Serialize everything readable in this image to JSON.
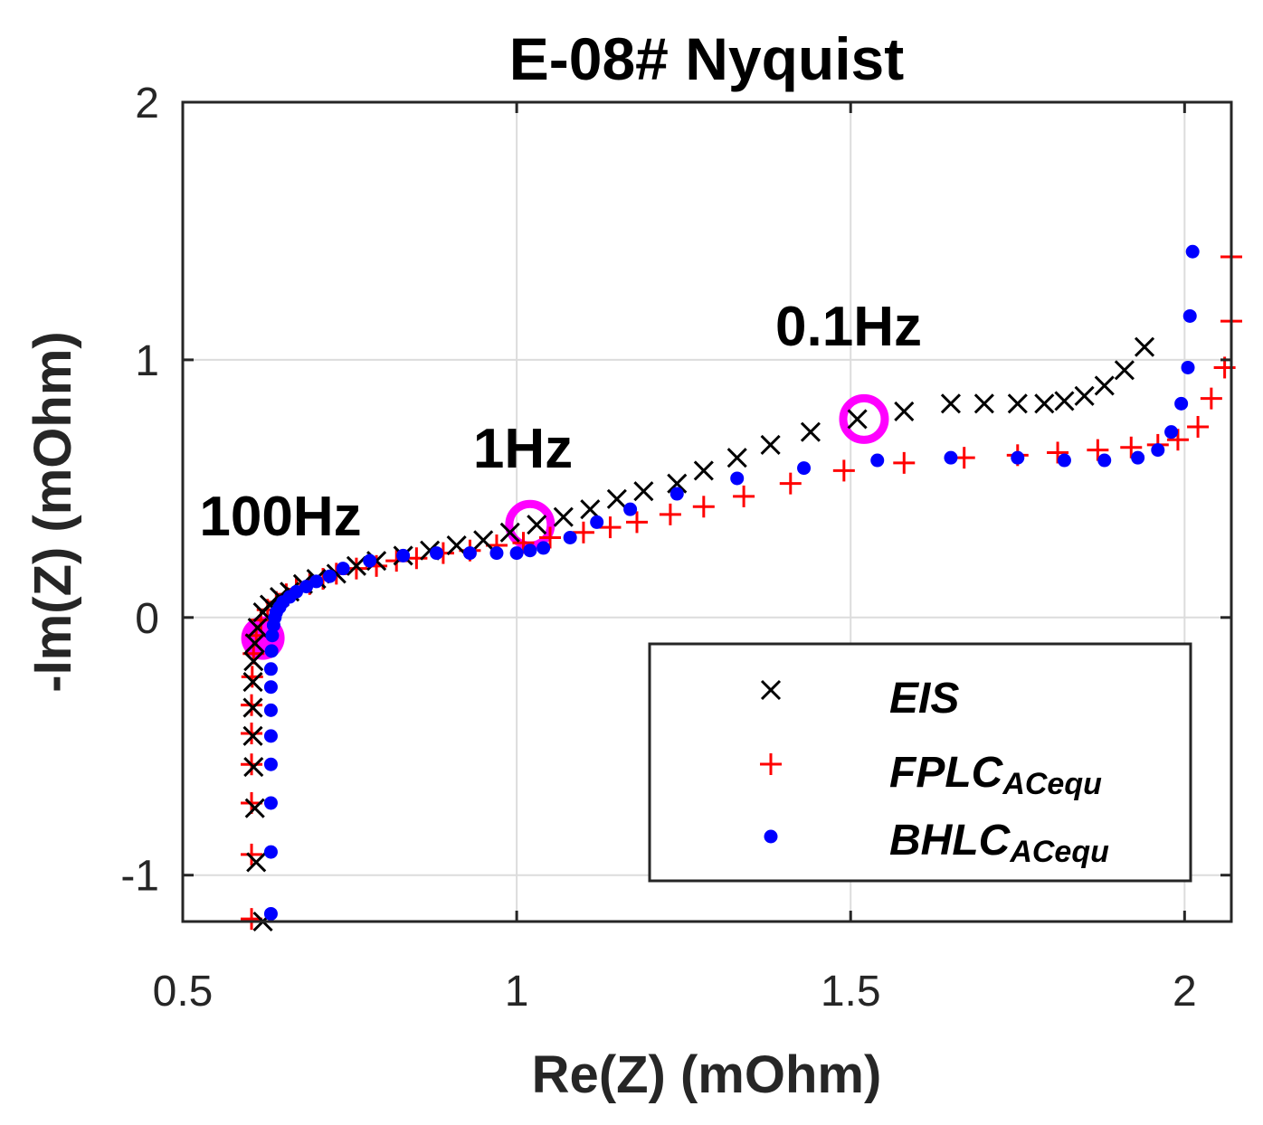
{
  "chart_data": {
    "type": "scatter",
    "title": "E-08# Nyquist",
    "xlabel": "Re(Z) (mOhm)",
    "ylabel": "-Im(Z) (mOhm)",
    "xlim": [
      0.5,
      2.07
    ],
    "ylim": [
      -1.18,
      2
    ],
    "xticks": [
      0.5,
      1,
      1.5,
      2
    ],
    "xtick_labels": [
      "0.5",
      "1",
      "1.5",
      "2"
    ],
    "yticks": [
      -1,
      0,
      1,
      2
    ],
    "ytick_labels": [
      "-1",
      "0",
      "1",
      "2"
    ],
    "grid": true,
    "legend_position": "bottom-right",
    "series": [
      {
        "name": "EIS",
        "label_main": "EIS",
        "label_sub": "",
        "marker": "x",
        "color": "#000000",
        "x": [
          0.62,
          0.61,
          0.608,
          0.606,
          0.605,
          0.605,
          0.605,
          0.606,
          0.608,
          0.612,
          0.62,
          0.63,
          0.645,
          0.66,
          0.68,
          0.7,
          0.73,
          0.76,
          0.79,
          0.83,
          0.87,
          0.91,
          0.95,
          0.99,
          1.03,
          1.07,
          1.11,
          1.15,
          1.19,
          1.24,
          1.28,
          1.33,
          1.38,
          1.44,
          1.51,
          1.58,
          1.65,
          1.7,
          1.75,
          1.79,
          1.82,
          1.85,
          1.88,
          1.91,
          1.94
        ],
        "y": [
          -1.18,
          -0.95,
          -0.74,
          -0.58,
          -0.46,
          -0.35,
          -0.25,
          -0.17,
          -0.1,
          -0.04,
          0.02,
          0.05,
          0.08,
          0.1,
          0.13,
          0.15,
          0.17,
          0.2,
          0.22,
          0.24,
          0.26,
          0.28,
          0.3,
          0.33,
          0.36,
          0.39,
          0.42,
          0.46,
          0.49,
          0.52,
          0.57,
          0.62,
          0.67,
          0.72,
          0.77,
          0.8,
          0.83,
          0.83,
          0.83,
          0.83,
          0.84,
          0.86,
          0.9,
          0.96,
          1.05
        ]
      },
      {
        "name": "FPLC ACequ",
        "label_main": "FPLC",
        "label_sub": "ACequ",
        "marker": "+",
        "color": "#ff0000",
        "x": [
          0.603,
          0.603,
          0.603,
          0.603,
          0.603,
          0.603,
          0.604,
          0.606,
          0.61,
          0.617,
          0.627,
          0.64,
          0.655,
          0.67,
          0.69,
          0.71,
          0.73,
          0.76,
          0.79,
          0.82,
          0.85,
          0.89,
          0.93,
          0.97,
          1.01,
          1.05,
          1.1,
          1.14,
          1.18,
          1.23,
          1.28,
          1.34,
          1.41,
          1.49,
          1.58,
          1.67,
          1.75,
          1.81,
          1.87,
          1.92,
          1.96,
          1.99,
          2.02,
          2.04,
          2.06,
          2.07,
          2.07
        ],
        "y": [
          -1.17,
          -0.92,
          -0.72,
          -0.57,
          -0.45,
          -0.34,
          -0.23,
          -0.14,
          -0.07,
          -0.01,
          0.03,
          0.06,
          0.09,
          0.11,
          0.13,
          0.15,
          0.17,
          0.19,
          0.2,
          0.22,
          0.23,
          0.25,
          0.26,
          0.28,
          0.29,
          0.31,
          0.33,
          0.35,
          0.37,
          0.4,
          0.43,
          0.47,
          0.52,
          0.57,
          0.6,
          0.62,
          0.63,
          0.64,
          0.65,
          0.66,
          0.67,
          0.69,
          0.74,
          0.85,
          0.97,
          1.15,
          1.4
        ]
      },
      {
        "name": "BHLC ACequ",
        "label_main": "BHLC",
        "label_sub": "ACequ",
        "marker": ".",
        "color": "#0000ff",
        "x": [
          0.632,
          0.632,
          0.632,
          0.632,
          0.632,
          0.632,
          0.632,
          0.632,
          0.633,
          0.634,
          0.636,
          0.638,
          0.64,
          0.645,
          0.65,
          0.66,
          0.67,
          0.685,
          0.7,
          0.72,
          0.74,
          0.78,
          0.83,
          0.88,
          0.93,
          0.97,
          1.0,
          1.02,
          1.04,
          1.08,
          1.12,
          1.17,
          1.24,
          1.33,
          1.43,
          1.54,
          1.65,
          1.75,
          1.82,
          1.88,
          1.93,
          1.96,
          1.98,
          1.995,
          2.005,
          2.008,
          2.012
        ],
        "y": [
          -1.15,
          -0.91,
          -0.72,
          -0.57,
          -0.46,
          -0.36,
          -0.27,
          -0.2,
          -0.13,
          -0.07,
          -0.03,
          0.0,
          0.02,
          0.04,
          0.06,
          0.08,
          0.1,
          0.12,
          0.14,
          0.16,
          0.19,
          0.22,
          0.24,
          0.25,
          0.25,
          0.25,
          0.25,
          0.26,
          0.27,
          0.31,
          0.37,
          0.42,
          0.48,
          0.54,
          0.58,
          0.61,
          0.62,
          0.62,
          0.61,
          0.61,
          0.62,
          0.65,
          0.72,
          0.83,
          0.97,
          1.17,
          1.42
        ]
      }
    ],
    "annotations": [
      {
        "text": "100Hz",
        "x": 0.62,
        "y": -0.08
      },
      {
        "text": "1Hz",
        "x": 1.02,
        "y": 0.36
      },
      {
        "text": "0.1Hz",
        "x": 1.52,
        "y": 0.77
      }
    ]
  },
  "colors": {
    "highlight": "#ff00ff",
    "axes": "#262626",
    "grid": "#dcdcdc"
  }
}
